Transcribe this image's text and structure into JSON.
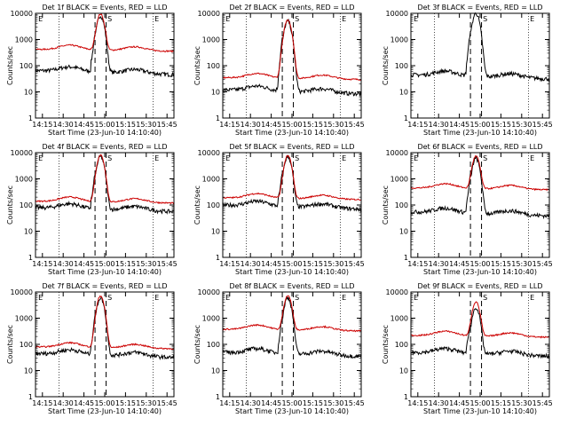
{
  "figure": {
    "start_time_label": "Start Time (23-Jun-10 14:10:40)",
    "ylabel": "Counts/sec"
  },
  "chart_data": [
    {
      "type": "line",
      "title": "Det 1f BLACK = Events, RED = LLD",
      "flags": [
        "E",
        "S",
        "E"
      ],
      "xlabel": "Start Time (23-Jun-10 14:10:40)",
      "ylabel": "Counts/sec",
      "yscale": "log",
      "ylim": [
        1,
        10000
      ],
      "x_ticks": [
        "14:15",
        "14:30",
        "14:45",
        "15:00",
        "15:15",
        "15:30",
        "15:45"
      ],
      "y_ticks": [
        "1",
        "10",
        "100",
        "1000",
        "10000"
      ],
      "series": [
        {
          "name": "Events",
          "color": "#000000",
          "base": 65,
          "peak": 8000
        },
        {
          "name": "LLD",
          "color": "#cc0000",
          "base": 420,
          "peak": 9000
        }
      ]
    },
    {
      "type": "line",
      "title": "Det 2f BLACK = Events, RED = LLD",
      "flags": [
        "E",
        "S",
        "E"
      ],
      "xlabel": "Start Time (23-Jun-10 14:10:40)",
      "ylabel": "Counts/sec",
      "yscale": "log",
      "ylim": [
        1,
        10000
      ],
      "x_ticks": [
        "14:15",
        "14:30",
        "14:45",
        "15:00",
        "15:15",
        "15:30",
        "15:45"
      ],
      "y_ticks": [
        "1",
        "10",
        "100",
        "1000",
        "10000"
      ],
      "series": [
        {
          "name": "Events",
          "color": "#000000",
          "base": 12,
          "peak": 5000
        },
        {
          "name": "LLD",
          "color": "#cc0000",
          "base": 35,
          "peak": 5500
        }
      ]
    },
    {
      "type": "line",
      "title": "Det 3f BLACK = Events, RED = LLD",
      "flags": [
        "E",
        "S",
        "E"
      ],
      "xlabel": "Start Time (23-Jun-10 14:10:40)",
      "ylabel": "Counts/sec",
      "yscale": "log",
      "ylim": [
        1,
        10000
      ],
      "x_ticks": [
        "14:15",
        "14:30",
        "14:45",
        "15:00",
        "15:15",
        "15:30",
        "15:45"
      ],
      "y_ticks": [
        "1",
        "10",
        "100",
        "1000",
        "10000"
      ],
      "series": [
        {
          "name": "Events",
          "color": "#000000",
          "base": 45,
          "peak": 10000
        }
      ]
    },
    {
      "type": "line",
      "title": "Det 4f BLACK = Events, RED = LLD",
      "flags": [
        "E",
        "S",
        "E"
      ],
      "xlabel": "Start Time (23-Jun-10 14:10:40)",
      "ylabel": "Counts/sec",
      "yscale": "log",
      "ylim": [
        1,
        10000
      ],
      "x_ticks": [
        "14:15",
        "14:30",
        "14:45",
        "15:00",
        "15:15",
        "15:30",
        "15:45"
      ],
      "y_ticks": [
        "1",
        "10",
        "100",
        "1000",
        "10000"
      ],
      "series": [
        {
          "name": "Events",
          "color": "#000000",
          "base": 80,
          "peak": 7000
        },
        {
          "name": "LLD",
          "color": "#cc0000",
          "base": 140,
          "peak": 8000
        }
      ]
    },
    {
      "type": "line",
      "title": "Det 5f BLACK = Events, RED = LLD",
      "flags": [
        "E",
        "S",
        "E"
      ],
      "xlabel": "Start Time (23-Jun-10 14:10:40)",
      "ylabel": "Counts/sec",
      "yscale": "log",
      "ylim": [
        1,
        10000
      ],
      "x_ticks": [
        "14:15",
        "14:30",
        "14:45",
        "15:00",
        "15:15",
        "15:30",
        "15:45"
      ],
      "y_ticks": [
        "1",
        "10",
        "100",
        "1000",
        "10000"
      ],
      "series": [
        {
          "name": "Events",
          "color": "#000000",
          "base": 100,
          "peak": 7000
        },
        {
          "name": "LLD",
          "color": "#cc0000",
          "base": 190,
          "peak": 7500
        }
      ]
    },
    {
      "type": "line",
      "title": "Det 6f BLACK = Events, RED = LLD",
      "flags": [
        "E",
        "S",
        "E"
      ],
      "xlabel": "Start Time (23-Jun-10 14:10:40)",
      "ylabel": "Counts/sec",
      "yscale": "log",
      "ylim": [
        1,
        10000
      ],
      "x_ticks": [
        "14:15",
        "14:30",
        "14:45",
        "15:00",
        "15:15",
        "15:30",
        "15:45"
      ],
      "y_ticks": [
        "1",
        "10",
        "100",
        "1000",
        "10000"
      ],
      "series": [
        {
          "name": "Events",
          "color": "#000000",
          "base": 55,
          "peak": 6000
        },
        {
          "name": "LLD",
          "color": "#cc0000",
          "base": 450,
          "peak": 7000
        }
      ]
    },
    {
      "type": "line",
      "title": "Det 7f BLACK = Events, RED = LLD",
      "flags": [
        "E",
        "S",
        "E"
      ],
      "xlabel": "Start Time (23-Jun-10 14:10:40)",
      "ylabel": "Counts/sec",
      "yscale": "log",
      "ylim": [
        1,
        10000
      ],
      "x_ticks": [
        "14:15",
        "14:30",
        "14:45",
        "15:00",
        "15:15",
        "15:30",
        "15:45"
      ],
      "y_ticks": [
        "1",
        "10",
        "100",
        "1000",
        "10000"
      ],
      "series": [
        {
          "name": "Events",
          "color": "#000000",
          "base": 45,
          "peak": 6000
        },
        {
          "name": "LLD",
          "color": "#cc0000",
          "base": 80,
          "peak": 7000
        }
      ]
    },
    {
      "type": "line",
      "title": "Det 8f BLACK = Events, RED = LLD",
      "flags": [
        "E",
        "S",
        "E"
      ],
      "xlabel": "Start Time (23-Jun-10 14:10:40)",
      "ylabel": "Counts/sec",
      "yscale": "log",
      "ylim": [
        1,
        10000
      ],
      "x_ticks": [
        "14:15",
        "14:30",
        "14:45",
        "15:00",
        "15:15",
        "15:30",
        "15:45"
      ],
      "y_ticks": [
        "1",
        "10",
        "100",
        "1000",
        "10000"
      ],
      "series": [
        {
          "name": "Events",
          "color": "#000000",
          "base": 50,
          "peak": 6000
        },
        {
          "name": "LLD",
          "color": "#cc0000",
          "base": 380,
          "peak": 7000
        }
      ]
    },
    {
      "type": "line",
      "title": "Det 9f BLACK = Events, RED = LLD",
      "flags": [
        "E",
        "S",
        "E"
      ],
      "xlabel": "Start Time (23-Jun-10 14:10:40)",
      "ylabel": "Counts/sec",
      "yscale": "log",
      "ylim": [
        1,
        10000
      ],
      "x_ticks": [
        "14:15",
        "14:30",
        "14:45",
        "15:00",
        "15:15",
        "15:30",
        "15:45"
      ],
      "y_ticks": [
        "1",
        "10",
        "100",
        "1000",
        "10000"
      ],
      "series": [
        {
          "name": "Events",
          "color": "#000000",
          "base": 50,
          "peak": 2500
        },
        {
          "name": "LLD",
          "color": "#cc0000",
          "base": 220,
          "peak": 4000
        }
      ]
    }
  ]
}
